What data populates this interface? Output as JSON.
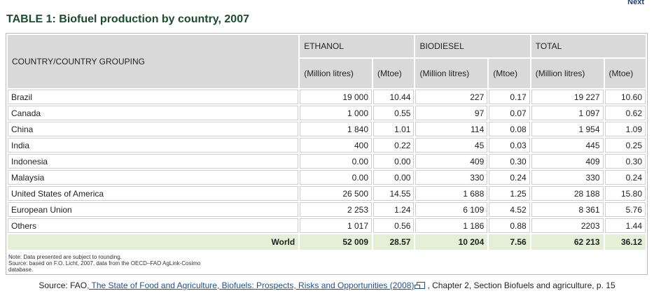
{
  "nav": {
    "next_label": "Next"
  },
  "title": "TABLE 1: Biofuel production by country, 2007",
  "table": {
    "country_header": "COUNTRY/COUNTRY GROUPING",
    "groups": [
      "ETHANOL",
      "BIODIESEL",
      "TOTAL"
    ],
    "units": [
      "(Million litres)",
      "(Mtoe)",
      "(Million litres)",
      "(Mtoe)",
      "(Million litres)",
      "(Mtoe)"
    ],
    "rows": [
      [
        "Brazil",
        "19 000",
        "10.44",
        "227",
        "0.17",
        "19 227",
        "10.60"
      ],
      [
        "Canada",
        "1 000",
        "0.55",
        "97",
        "0.07",
        "1 097",
        "0.62"
      ],
      [
        "China",
        "1 840",
        "1.01",
        "114",
        "0.08",
        "1 954",
        "1.09"
      ],
      [
        "India",
        "400",
        "0.22",
        "45",
        "0.03",
        "445",
        "0.25"
      ],
      [
        "Indonesia",
        "0.00",
        "0.00",
        "409",
        "0.30",
        "409",
        "0.30"
      ],
      [
        "Malaysia",
        "0.00",
        "0.00",
        "330",
        "0.24",
        "330",
        "0.24"
      ],
      [
        "United States of America",
        "26 500",
        "14.55",
        "1 688",
        "1.25",
        "28 188",
        "15.80"
      ],
      [
        "European Union",
        "2 253",
        "1.24",
        "6 109",
        "4.52",
        "8 361",
        "5.76"
      ],
      [
        "Others",
        "1 017",
        "0.56",
        "1 186",
        "0.88",
        "2203",
        "1.44"
      ]
    ],
    "total": [
      "World",
      "52 009",
      "28.57",
      "10 204",
      "7.56",
      "62 213",
      "36.12"
    ]
  },
  "notes": {
    "line1": "Note: Data presented are subject to rounding.",
    "line2": "Source: based on F.O. Licht, 2007, data from the OECD–FAO AgLink-Cosimo",
    "line3": "database."
  },
  "source": {
    "prefix": "Source: FAO",
    "link_text": ", The State of Food and Agriculture, Biofuels: Prospects, Risks and Opportunities (2008)",
    "suffix": ", Chapter 2, Section Biofuels and agriculture, p. 15"
  },
  "icons": {
    "external_link": "external-window-icon"
  }
}
